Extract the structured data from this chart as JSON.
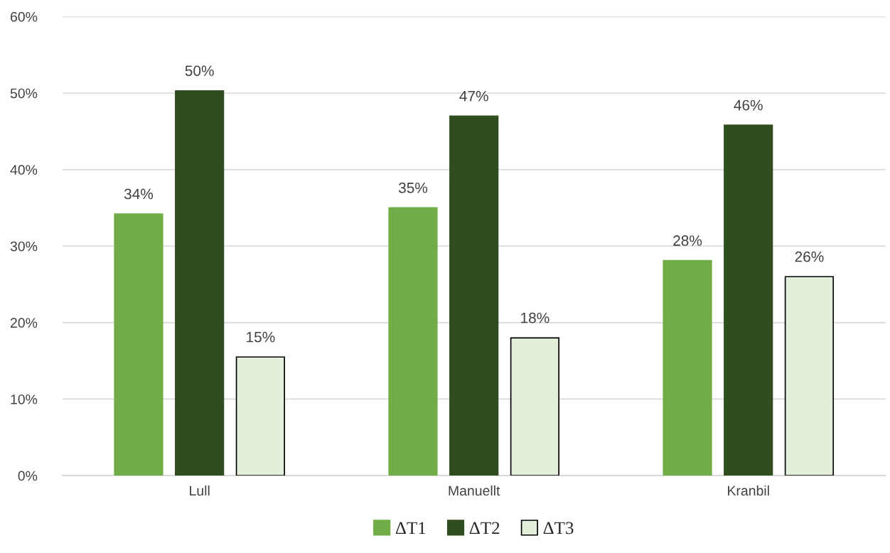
{
  "chart_data": {
    "type": "bar",
    "categories": [
      "Lull",
      "Manuellt",
      "Kranbil"
    ],
    "series": [
      {
        "name": "ΔT1",
        "color": "#70ad47",
        "values": [
          34.2,
          35.0,
          28.1
        ],
        "value_labels": [
          "34%",
          "35%",
          "28%"
        ]
      },
      {
        "name": "ΔT2",
        "color": "#304d1f",
        "values": [
          50.3,
          47.0,
          45.8
        ],
        "value_labels": [
          "50%",
          "47%",
          "46%"
        ]
      },
      {
        "name": "ΔT3",
        "color": "#e2efda",
        "values": [
          15.5,
          18.0,
          26.0
        ],
        "value_labels": [
          "15%",
          "18%",
          "26%"
        ]
      }
    ],
    "ylim": [
      0,
      60
    ],
    "yticks": [
      {
        "value": 0,
        "label": "0%"
      },
      {
        "value": 10,
        "label": "10%"
      },
      {
        "value": 20,
        "label": "20%"
      },
      {
        "value": 30,
        "label": "30%"
      },
      {
        "value": 40,
        "label": "40%"
      },
      {
        "value": 50,
        "label": "50%"
      },
      {
        "value": 60,
        "label": "60%"
      }
    ],
    "grid": "y",
    "legend": "bottom"
  }
}
